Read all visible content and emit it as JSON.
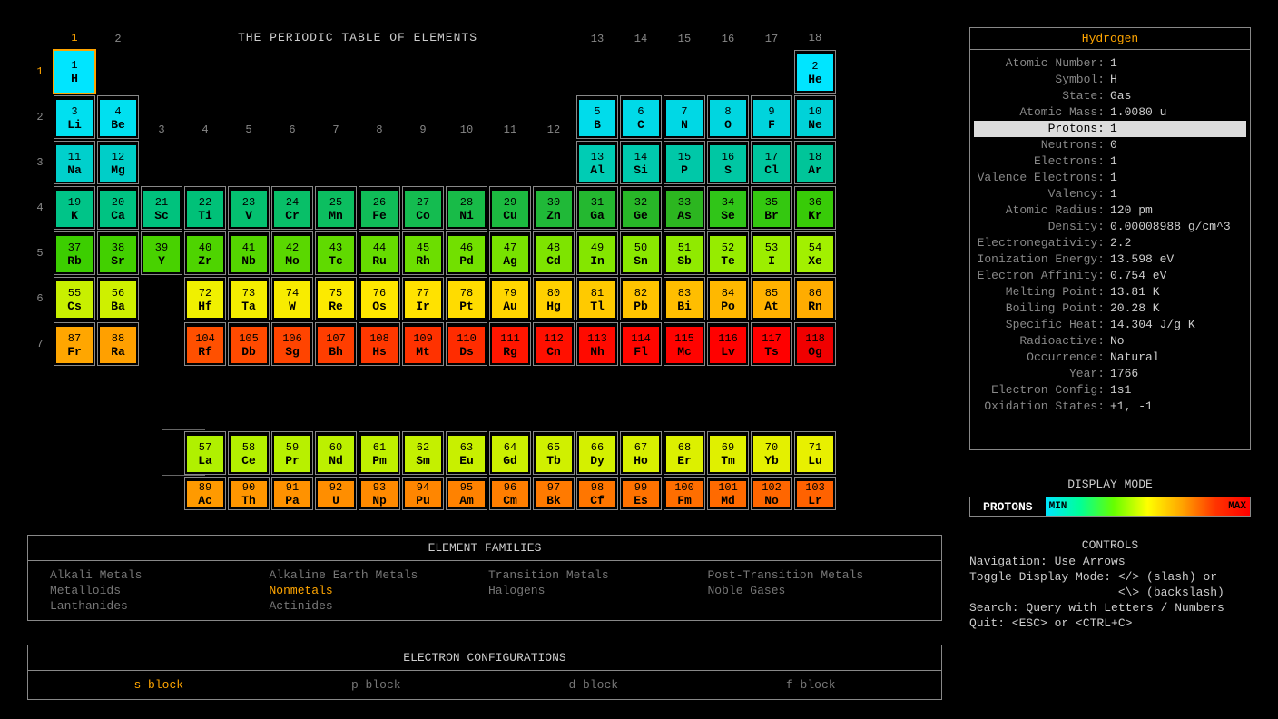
{
  "title": "THE PERIODIC TABLE OF ELEMENTS",
  "selected": {
    "num": 1,
    "sym": "H"
  },
  "grid": {
    "col_labels": [
      1,
      2,
      3,
      4,
      5,
      6,
      7,
      8,
      9,
      10,
      11,
      12,
      13,
      14,
      15,
      16,
      17,
      18
    ],
    "row_labels": [
      1,
      2,
      3,
      4,
      5,
      6,
      7
    ],
    "highlight_col": 1,
    "highlight_row": 1
  },
  "colors": {
    "spectrum_min": "#00e5ff",
    "spectrum_max": "#ff0000",
    "border": "#888888",
    "accent": "#ffa500",
    "bg": "#000000",
    "text": "#cccccc"
  },
  "elements": [
    {
      "n": 1,
      "s": "H",
      "r": 1,
      "c": 1,
      "bg": "#00e5ff"
    },
    {
      "n": 2,
      "s": "He",
      "r": 1,
      "c": 18,
      "bg": "#00e5ff"
    },
    {
      "n": 3,
      "s": "Li",
      "r": 2,
      "c": 1,
      "bg": "#00e0f0"
    },
    {
      "n": 4,
      "s": "Be",
      "r": 2,
      "c": 2,
      "bg": "#00e0f0"
    },
    {
      "n": 5,
      "s": "B",
      "r": 2,
      "c": 13,
      "bg": "#00dceb"
    },
    {
      "n": 6,
      "s": "C",
      "r": 2,
      "c": 14,
      "bg": "#00dae8"
    },
    {
      "n": 7,
      "s": "N",
      "r": 2,
      "c": 15,
      "bg": "#00d8e5"
    },
    {
      "n": 8,
      "s": "O",
      "r": 2,
      "c": 16,
      "bg": "#00d6e0"
    },
    {
      "n": 9,
      "s": "F",
      "r": 2,
      "c": 17,
      "bg": "#00d4dc"
    },
    {
      "n": 10,
      "s": "Ne",
      "r": 2,
      "c": 18,
      "bg": "#00d2d8"
    },
    {
      "n": 11,
      "s": "Na",
      "r": 3,
      "c": 1,
      "bg": "#00d0cc"
    },
    {
      "n": 12,
      "s": "Mg",
      "r": 3,
      "c": 2,
      "bg": "#00cec8"
    },
    {
      "n": 13,
      "s": "Al",
      "r": 3,
      "c": 13,
      "bg": "#00ccb4"
    },
    {
      "n": 14,
      "s": "Si",
      "r": 3,
      "c": 14,
      "bg": "#00caae"
    },
    {
      "n": 15,
      "s": "P",
      "r": 3,
      "c": 15,
      "bg": "#00c8a8"
    },
    {
      "n": 16,
      "s": "S",
      "r": 3,
      "c": 16,
      "bg": "#00c7a3"
    },
    {
      "n": 17,
      "s": "Cl",
      "r": 3,
      "c": 17,
      "bg": "#00c69e"
    },
    {
      "n": 18,
      "s": "Ar",
      "r": 3,
      "c": 18,
      "bg": "#00c599"
    },
    {
      "n": 19,
      "s": "K",
      "r": 4,
      "c": 1,
      "bg": "#00c488"
    },
    {
      "n": 20,
      "s": "Ca",
      "r": 4,
      "c": 2,
      "bg": "#00c382"
    },
    {
      "n": 21,
      "s": "Sc",
      "r": 4,
      "c": 3,
      "bg": "#00c27d"
    },
    {
      "n": 22,
      "s": "Ti",
      "r": 4,
      "c": 4,
      "bg": "#00c178"
    },
    {
      "n": 23,
      "s": "V",
      "r": 4,
      "c": 5,
      "bg": "#04c070"
    },
    {
      "n": 24,
      "s": "Cr",
      "r": 4,
      "c": 6,
      "bg": "#08bf68"
    },
    {
      "n": 25,
      "s": "Mn",
      "r": 4,
      "c": 7,
      "bg": "#0cbe60"
    },
    {
      "n": 26,
      "s": "Fe",
      "r": 4,
      "c": 8,
      "bg": "#10bd58"
    },
    {
      "n": 27,
      "s": "Co",
      "r": 4,
      "c": 9,
      "bg": "#14bc50"
    },
    {
      "n": 28,
      "s": "Ni",
      "r": 4,
      "c": 10,
      "bg": "#18bb48"
    },
    {
      "n": 29,
      "s": "Cu",
      "r": 4,
      "c": 11,
      "bg": "#1cba40"
    },
    {
      "n": 30,
      "s": "Zn",
      "r": 4,
      "c": 12,
      "bg": "#20b938"
    },
    {
      "n": 31,
      "s": "Ga",
      "r": 4,
      "c": 13,
      "bg": "#24b830"
    },
    {
      "n": 32,
      "s": "Ge",
      "r": 4,
      "c": 14,
      "bg": "#28b728"
    },
    {
      "n": 33,
      "s": "As",
      "r": 4,
      "c": 15,
      "bg": "#2cb620"
    },
    {
      "n": 34,
      "s": "Se",
      "r": 4,
      "c": 16,
      "bg": "#30c518"
    },
    {
      "n": 35,
      "s": "Br",
      "r": 4,
      "c": 17,
      "bg": "#34c810"
    },
    {
      "n": 36,
      "s": "Kr",
      "r": 4,
      "c": 18,
      "bg": "#38cb08"
    },
    {
      "n": 37,
      "s": "Rb",
      "r": 5,
      "c": 1,
      "bg": "#3cce00"
    },
    {
      "n": 38,
      "s": "Sr",
      "r": 5,
      "c": 2,
      "bg": "#42d000"
    },
    {
      "n": 39,
      "s": "Y",
      "r": 5,
      "c": 3,
      "bg": "#48d200"
    },
    {
      "n": 40,
      "s": "Zr",
      "r": 5,
      "c": 4,
      "bg": "#4ed400"
    },
    {
      "n": 41,
      "s": "Nb",
      "r": 5,
      "c": 5,
      "bg": "#54d600"
    },
    {
      "n": 42,
      "s": "Mo",
      "r": 5,
      "c": 6,
      "bg": "#5ad800"
    },
    {
      "n": 43,
      "s": "Tc",
      "r": 5,
      "c": 7,
      "bg": "#60da00"
    },
    {
      "n": 44,
      "s": "Ru",
      "r": 5,
      "c": 8,
      "bg": "#66dc00"
    },
    {
      "n": 45,
      "s": "Rh",
      "r": 5,
      "c": 9,
      "bg": "#6cde00"
    },
    {
      "n": 46,
      "s": "Pd",
      "r": 5,
      "c": 10,
      "bg": "#72e000"
    },
    {
      "n": 47,
      "s": "Ag",
      "r": 5,
      "c": 11,
      "bg": "#78e200"
    },
    {
      "n": 48,
      "s": "Cd",
      "r": 5,
      "c": 12,
      "bg": "#7ee400"
    },
    {
      "n": 49,
      "s": "In",
      "r": 5,
      "c": 13,
      "bg": "#84e600"
    },
    {
      "n": 50,
      "s": "Sn",
      "r": 5,
      "c": 14,
      "bg": "#8ae800"
    },
    {
      "n": 51,
      "s": "Sb",
      "r": 5,
      "c": 15,
      "bg": "#90ea00"
    },
    {
      "n": 52,
      "s": "Te",
      "r": 5,
      "c": 16,
      "bg": "#96ec00"
    },
    {
      "n": 53,
      "s": "I",
      "r": 5,
      "c": 17,
      "bg": "#9cee00"
    },
    {
      "n": 54,
      "s": "Xe",
      "r": 5,
      "c": 18,
      "bg": "#a2f000"
    },
    {
      "n": 55,
      "s": "Cs",
      "r": 6,
      "c": 1,
      "bg": "#c8f000"
    },
    {
      "n": 56,
      "s": "Ba",
      "r": 6,
      "c": 2,
      "bg": "#cef000"
    },
    {
      "n": 72,
      "s": "Hf",
      "r": 6,
      "c": 4,
      "bg": "#f0f000"
    },
    {
      "n": 73,
      "s": "Ta",
      "r": 6,
      "c": 5,
      "bg": "#f4ee00"
    },
    {
      "n": 74,
      "s": "W",
      "r": 6,
      "c": 6,
      "bg": "#f8ec00"
    },
    {
      "n": 75,
      "s": "Re",
      "r": 6,
      "c": 7,
      "bg": "#fcea00"
    },
    {
      "n": 76,
      "s": "Os",
      "r": 6,
      "c": 8,
      "bg": "#ffe800"
    },
    {
      "n": 77,
      "s": "Ir",
      "r": 6,
      "c": 9,
      "bg": "#ffe200"
    },
    {
      "n": 78,
      "s": "Pt",
      "r": 6,
      "c": 10,
      "bg": "#ffdc00"
    },
    {
      "n": 79,
      "s": "Au",
      "r": 6,
      "c": 11,
      "bg": "#ffd600"
    },
    {
      "n": 80,
      "s": "Hg",
      "r": 6,
      "c": 12,
      "bg": "#ffd000"
    },
    {
      "n": 81,
      "s": "Tl",
      "r": 6,
      "c": 13,
      "bg": "#ffca00"
    },
    {
      "n": 82,
      "s": "Pb",
      "r": 6,
      "c": 14,
      "bg": "#ffc400"
    },
    {
      "n": 83,
      "s": "Bi",
      "r": 6,
      "c": 15,
      "bg": "#ffbe00"
    },
    {
      "n": 84,
      "s": "Po",
      "r": 6,
      "c": 16,
      "bg": "#ffb800"
    },
    {
      "n": 85,
      "s": "At",
      "r": 6,
      "c": 17,
      "bg": "#ffb200"
    },
    {
      "n": 86,
      "s": "Rn",
      "r": 6,
      "c": 18,
      "bg": "#ffac00"
    },
    {
      "n": 87,
      "s": "Fr",
      "r": 7,
      "c": 1,
      "bg": "#ffa600"
    },
    {
      "n": 88,
      "s": "Ra",
      "r": 7,
      "c": 2,
      "bg": "#ffa000"
    },
    {
      "n": 104,
      "s": "Rf",
      "r": 7,
      "c": 4,
      "bg": "#ff5000"
    },
    {
      "n": 105,
      "s": "Db",
      "r": 7,
      "c": 5,
      "bg": "#ff4a00"
    },
    {
      "n": 106,
      "s": "Sg",
      "r": 7,
      "c": 6,
      "bg": "#ff4400"
    },
    {
      "n": 107,
      "s": "Bh",
      "r": 7,
      "c": 7,
      "bg": "#ff3e00"
    },
    {
      "n": 108,
      "s": "Hs",
      "r": 7,
      "c": 8,
      "bg": "#ff3800"
    },
    {
      "n": 109,
      "s": "Mt",
      "r": 7,
      "c": 9,
      "bg": "#ff3200"
    },
    {
      "n": 110,
      "s": "Ds",
      "r": 7,
      "c": 10,
      "bg": "#ff2c00"
    },
    {
      "n": 111,
      "s": "Rg",
      "r": 7,
      "c": 11,
      "bg": "#ff1600"
    },
    {
      "n": 112,
      "s": "Cn",
      "r": 7,
      "c": 12,
      "bg": "#ff1000"
    },
    {
      "n": 113,
      "s": "Nh",
      "r": 7,
      "c": 13,
      "bg": "#ff0a00"
    },
    {
      "n": 114,
      "s": "Fl",
      "r": 7,
      "c": 14,
      "bg": "#ff0600"
    },
    {
      "n": 115,
      "s": "Mc",
      "r": 7,
      "c": 15,
      "bg": "#ff0300"
    },
    {
      "n": 116,
      "s": "Lv",
      "r": 7,
      "c": 16,
      "bg": "#ff0100"
    },
    {
      "n": 117,
      "s": "Ts",
      "r": 7,
      "c": 17,
      "bg": "#ff0000"
    },
    {
      "n": 118,
      "s": "Og",
      "r": 7,
      "c": 18,
      "bg": "#f00000"
    },
    {
      "n": 57,
      "s": "La",
      "r": 9,
      "c": 4,
      "bg": "#b0f000"
    },
    {
      "n": 58,
      "s": "Ce",
      "r": 9,
      "c": 5,
      "bg": "#b4f000"
    },
    {
      "n": 59,
      "s": "Pr",
      "r": 9,
      "c": 6,
      "bg": "#b8f000"
    },
    {
      "n": 60,
      "s": "Nd",
      "r": 9,
      "c": 7,
      "bg": "#bcf000"
    },
    {
      "n": 61,
      "s": "Pm",
      "r": 9,
      "c": 8,
      "bg": "#c0f000"
    },
    {
      "n": 62,
      "s": "Sm",
      "r": 9,
      "c": 9,
      "bg": "#c4f000"
    },
    {
      "n": 63,
      "s": "Eu",
      "r": 9,
      "c": 10,
      "bg": "#c8f000"
    },
    {
      "n": 64,
      "s": "Gd",
      "r": 9,
      "c": 11,
      "bg": "#ccf000"
    },
    {
      "n": 65,
      "s": "Tb",
      "r": 9,
      "c": 12,
      "bg": "#d0f000"
    },
    {
      "n": 66,
      "s": "Dy",
      "r": 9,
      "c": 13,
      "bg": "#d4f000"
    },
    {
      "n": 67,
      "s": "Ho",
      "r": 9,
      "c": 14,
      "bg": "#d8f000"
    },
    {
      "n": 68,
      "s": "Er",
      "r": 9,
      "c": 15,
      "bg": "#dcf000"
    },
    {
      "n": 69,
      "s": "Tm",
      "r": 9,
      "c": 16,
      "bg": "#e0f000"
    },
    {
      "n": 70,
      "s": "Yb",
      "r": 9,
      "c": 17,
      "bg": "#e4f000"
    },
    {
      "n": 71,
      "s": "Lu",
      "r": 9,
      "c": 18,
      "bg": "#e8f000"
    },
    {
      "n": 89,
      "s": "Ac",
      "r": 10,
      "c": 4,
      "bg": "#ff9a00"
    },
    {
      "n": 90,
      "s": "Th",
      "r": 10,
      "c": 5,
      "bg": "#ff9600"
    },
    {
      "n": 91,
      "s": "Pa",
      "r": 10,
      "c": 6,
      "bg": "#ff9200"
    },
    {
      "n": 92,
      "s": "U",
      "r": 10,
      "c": 7,
      "bg": "#ff8e00"
    },
    {
      "n": 93,
      "s": "Np",
      "r": 10,
      "c": 8,
      "bg": "#ff8a00"
    },
    {
      "n": 94,
      "s": "Pu",
      "r": 10,
      "c": 9,
      "bg": "#ff8600"
    },
    {
      "n": 95,
      "s": "Am",
      "r": 10,
      "c": 10,
      "bg": "#ff8200"
    },
    {
      "n": 96,
      "s": "Cm",
      "r": 10,
      "c": 11,
      "bg": "#ff7e00"
    },
    {
      "n": 97,
      "s": "Bk",
      "r": 10,
      "c": 12,
      "bg": "#ff7a00"
    },
    {
      "n": 98,
      "s": "Cf",
      "r": 10,
      "c": 13,
      "bg": "#ff7600"
    },
    {
      "n": 99,
      "s": "Es",
      "r": 10,
      "c": 14,
      "bg": "#ff7200"
    },
    {
      "n": 100,
      "s": "Fm",
      "r": 10,
      "c": 15,
      "bg": "#ff6e00"
    },
    {
      "n": 101,
      "s": "Md",
      "r": 10,
      "c": 16,
      "bg": "#ff6a00"
    },
    {
      "n": 102,
      "s": "No",
      "r": 10,
      "c": 17,
      "bg": "#ff6600"
    },
    {
      "n": 103,
      "s": "Lr",
      "r": 10,
      "c": 18,
      "bg": "#ff6200"
    }
  ],
  "detail": {
    "name": "Hydrogen",
    "props": [
      {
        "label": "Atomic Number:",
        "value": "1"
      },
      {
        "label": "Symbol:",
        "value": "H"
      },
      {
        "label": "State:",
        "value": "Gas"
      },
      {
        "label": "Atomic Mass:",
        "value": "1.0080 u"
      },
      {
        "label": "Protons:",
        "value": "1",
        "hl": true
      },
      {
        "label": "Neutrons:",
        "value": "0"
      },
      {
        "label": "Electrons:",
        "value": "1"
      },
      {
        "label": "Valence Electrons:",
        "value": "1"
      },
      {
        "label": "Valency:",
        "value": "1"
      },
      {
        "label": "Atomic Radius:",
        "value": "120 pm"
      },
      {
        "label": "Density:",
        "value": "0.00008988 g/cm^3"
      },
      {
        "label": "Electronegativity:",
        "value": "2.2"
      },
      {
        "label": "Ionization Energy:",
        "value": "13.598 eV"
      },
      {
        "label": "Electron Affinity:",
        "value": "0.754 eV"
      },
      {
        "label": "Melting Point:",
        "value": "13.81 K"
      },
      {
        "label": "Boiling Point:",
        "value": "20.28 K"
      },
      {
        "label": "Specific Heat:",
        "value": "14.304 J/g K"
      },
      {
        "label": "Radioactive:",
        "value": "No"
      },
      {
        "label": "Occurrence:",
        "value": "Natural"
      },
      {
        "label": "Year:",
        "value": "1766"
      },
      {
        "label": "Electron Config:",
        "value": "1s1"
      },
      {
        "label": "Oxidation States:",
        "value": "+1, -1"
      }
    ]
  },
  "families": {
    "title": "ELEMENT FAMILIES",
    "items": [
      "Alkali Metals",
      "Alkaline Earth Metals",
      "Transition Metals",
      "Post-Transition Metals",
      "Metalloids",
      "Nonmetals",
      "Halogens",
      "Noble Gases",
      "Lanthanides",
      "Actinides"
    ],
    "active": "Nonmetals"
  },
  "blocks": {
    "title": "ELECTRON CONFIGURATIONS",
    "items": [
      "s-block",
      "p-block",
      "d-block",
      "f-block"
    ],
    "active": "s-block"
  },
  "mode": {
    "title": "DISPLAY MODE",
    "label": "PROTONS",
    "min": "MIN",
    "max": "MAX"
  },
  "controls": {
    "title": "CONTROLS",
    "lines": [
      "Navigation: Use Arrows",
      "Toggle Display Mode: </> (slash) or",
      "                     <\\> (backslash)",
      "Search: Query with Letters / Numbers",
      "Quit: <ESC> or <CTRL+C>"
    ]
  }
}
